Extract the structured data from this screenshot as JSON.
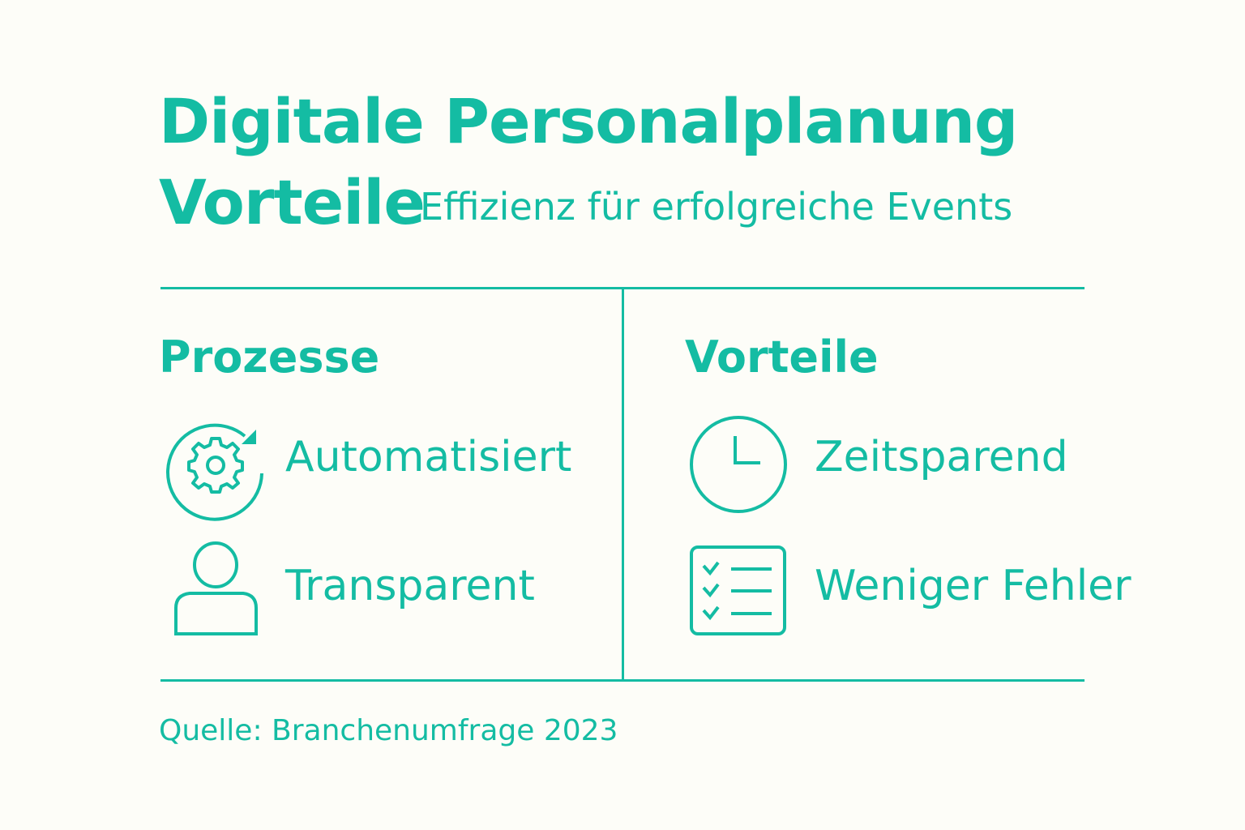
{
  "title": {
    "line1": "Digitale Personalplanung",
    "line2": "Vorteile",
    "subtitle": "Effizienz für erfolgreiche Events"
  },
  "accent_color": "#14bca3",
  "columns": [
    {
      "heading": "Prozesse",
      "items": [
        {
          "icon": "gear-cycle-icon",
          "label": "Automatisiert"
        },
        {
          "icon": "person-icon",
          "label": "Transparent"
        }
      ]
    },
    {
      "heading": "Vorteile",
      "items": [
        {
          "icon": "clock-icon",
          "label": "Zeitsparend"
        },
        {
          "icon": "checklist-icon",
          "label": "Weniger Fehler"
        }
      ]
    }
  ],
  "source": "Quelle: Branchenumfrage 2023"
}
